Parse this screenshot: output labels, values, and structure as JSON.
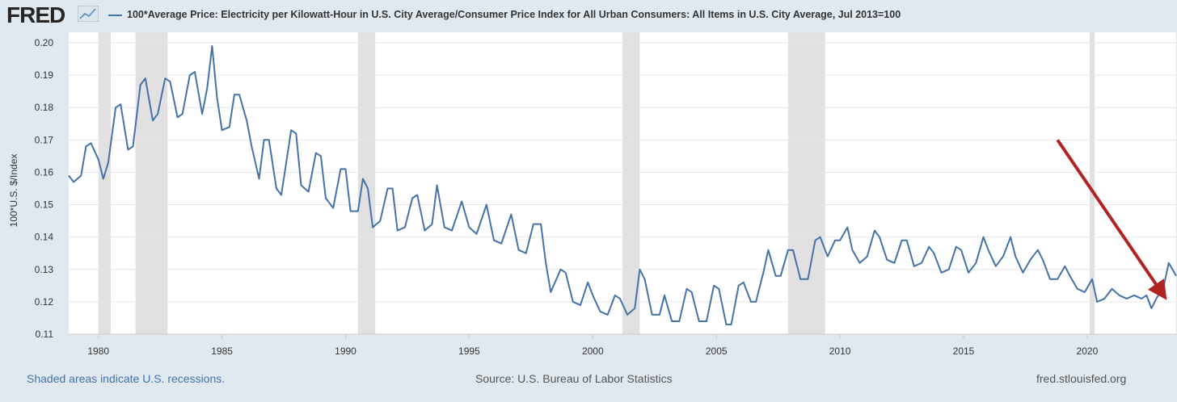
{
  "header": {
    "logo_text": "FRED",
    "logo_icon": "chart-line-icon",
    "legend_label": "100*Average Price: Electricity per Kilowatt-Hour in U.S. City Average/Consumer Price Index for All Urban Consumers: All Items in U.S. City Average, Jul 2013=100"
  },
  "footer": {
    "note": "Shaded areas indicate U.S. recessions.",
    "source": "Source: U.S. Bureau of Labor Statistics",
    "site": "fred.stlouisfed.org"
  },
  "colors": {
    "background": "#e1e9f0",
    "plot_background": "#ffffff",
    "series_line": "#4572a7",
    "recession_band": "#e1e1e1",
    "annotation_arrow": "#b22222"
  },
  "chart_data": {
    "type": "line",
    "title": "",
    "xlabel": "",
    "ylabel": "100*U.S. $/Index",
    "xlim": [
      1978.8,
      2023.6
    ],
    "ylim": [
      0.11,
      0.2
    ],
    "x_ticks": [
      1980,
      1985,
      1990,
      1995,
      2000,
      2005,
      2010,
      2015,
      2020
    ],
    "y_ticks": [
      0.11,
      0.12,
      0.13,
      0.14,
      0.15,
      0.16,
      0.17,
      0.18,
      0.19,
      0.2
    ],
    "y_tick_labels": [
      "0.11",
      "0.12",
      "0.13",
      "0.14",
      "0.15",
      "0.16",
      "0.17",
      "0.18",
      "0.19",
      "0.20"
    ],
    "grid": "horizontal",
    "legend": "top-left",
    "recessions": [
      [
        1980.0,
        1980.5
      ],
      [
        1981.5,
        1982.8
      ],
      [
        1990.5,
        1991.2
      ],
      [
        2001.2,
        2001.9
      ],
      [
        2007.9,
        2009.4
      ],
      [
        2020.1,
        2020.3
      ]
    ],
    "series": [
      {
        "name": "100*Average Price: Electricity per Kilowatt-Hour in U.S. City Average/Consumer Price Index for All Urban Consumers: All Items in U.S. City Average, Jul 2013=100",
        "points": [
          [
            1978.8,
            0.159
          ],
          [
            1979.0,
            0.157
          ],
          [
            1979.3,
            0.159
          ],
          [
            1979.5,
            0.168
          ],
          [
            1979.7,
            0.169
          ],
          [
            1980.0,
            0.164
          ],
          [
            1980.2,
            0.158
          ],
          [
            1980.4,
            0.163
          ],
          [
            1980.7,
            0.18
          ],
          [
            1980.9,
            0.181
          ],
          [
            1981.2,
            0.167
          ],
          [
            1981.4,
            0.168
          ],
          [
            1981.7,
            0.187
          ],
          [
            1981.9,
            0.189
          ],
          [
            1982.2,
            0.176
          ],
          [
            1982.4,
            0.178
          ],
          [
            1982.7,
            0.189
          ],
          [
            1982.9,
            0.188
          ],
          [
            1983.2,
            0.177
          ],
          [
            1983.4,
            0.178
          ],
          [
            1983.7,
            0.19
          ],
          [
            1983.9,
            0.191
          ],
          [
            1984.2,
            0.178
          ],
          [
            1984.4,
            0.186
          ],
          [
            1984.6,
            0.199
          ],
          [
            1984.8,
            0.183
          ],
          [
            1985.0,
            0.173
          ],
          [
            1985.3,
            0.174
          ],
          [
            1985.5,
            0.184
          ],
          [
            1985.7,
            0.184
          ],
          [
            1986.0,
            0.176
          ],
          [
            1986.2,
            0.168
          ],
          [
            1986.5,
            0.158
          ],
          [
            1986.7,
            0.17
          ],
          [
            1986.9,
            0.17
          ],
          [
            1987.2,
            0.155
          ],
          [
            1987.4,
            0.153
          ],
          [
            1987.8,
            0.173
          ],
          [
            1988.0,
            0.172
          ],
          [
            1988.2,
            0.156
          ],
          [
            1988.5,
            0.154
          ],
          [
            1988.8,
            0.166
          ],
          [
            1989.0,
            0.165
          ],
          [
            1989.2,
            0.152
          ],
          [
            1989.5,
            0.149
          ],
          [
            1989.8,
            0.161
          ],
          [
            1990.0,
            0.161
          ],
          [
            1990.2,
            0.148
          ],
          [
            1990.5,
            0.148
          ],
          [
            1990.7,
            0.158
          ],
          [
            1990.9,
            0.155
          ],
          [
            1991.1,
            0.143
          ],
          [
            1991.4,
            0.145
          ],
          [
            1991.7,
            0.155
          ],
          [
            1991.9,
            0.155
          ],
          [
            1992.1,
            0.142
          ],
          [
            1992.4,
            0.143
          ],
          [
            1992.7,
            0.152
          ],
          [
            1992.9,
            0.153
          ],
          [
            1993.2,
            0.142
          ],
          [
            1993.5,
            0.144
          ],
          [
            1993.7,
            0.156
          ],
          [
            1994.0,
            0.143
          ],
          [
            1994.3,
            0.142
          ],
          [
            1994.7,
            0.151
          ],
          [
            1995.0,
            0.143
          ],
          [
            1995.3,
            0.141
          ],
          [
            1995.7,
            0.15
          ],
          [
            1996.0,
            0.139
          ],
          [
            1996.3,
            0.138
          ],
          [
            1996.7,
            0.147
          ],
          [
            1997.0,
            0.136
          ],
          [
            1997.3,
            0.135
          ],
          [
            1997.6,
            0.144
          ],
          [
            1997.9,
            0.144
          ],
          [
            1998.1,
            0.132
          ],
          [
            1998.3,
            0.123
          ],
          [
            1998.7,
            0.13
          ],
          [
            1998.9,
            0.129
          ],
          [
            1999.2,
            0.12
          ],
          [
            1999.5,
            0.119
          ],
          [
            1999.8,
            0.126
          ],
          [
            2000.0,
            0.122
          ],
          [
            2000.3,
            0.117
          ],
          [
            2000.6,
            0.116
          ],
          [
            2000.9,
            0.122
          ],
          [
            2001.1,
            0.121
          ],
          [
            2001.4,
            0.116
          ],
          [
            2001.7,
            0.118
          ],
          [
            2001.9,
            0.13
          ],
          [
            2002.1,
            0.127
          ],
          [
            2002.4,
            0.116
          ],
          [
            2002.7,
            0.116
          ],
          [
            2002.9,
            0.122
          ],
          [
            2003.2,
            0.114
          ],
          [
            2003.5,
            0.114
          ],
          [
            2003.8,
            0.124
          ],
          [
            2004.0,
            0.123
          ],
          [
            2004.3,
            0.114
          ],
          [
            2004.6,
            0.114
          ],
          [
            2004.9,
            0.125
          ],
          [
            2005.1,
            0.124
          ],
          [
            2005.4,
            0.113
          ],
          [
            2005.6,
            0.113
          ],
          [
            2005.9,
            0.125
          ],
          [
            2006.1,
            0.126
          ],
          [
            2006.4,
            0.12
          ],
          [
            2006.6,
            0.12
          ],
          [
            2006.9,
            0.129
          ],
          [
            2007.1,
            0.136
          ],
          [
            2007.4,
            0.128
          ],
          [
            2007.6,
            0.128
          ],
          [
            2007.9,
            0.136
          ],
          [
            2008.1,
            0.136
          ],
          [
            2008.4,
            0.127
          ],
          [
            2008.7,
            0.127
          ],
          [
            2009.0,
            0.139
          ],
          [
            2009.2,
            0.14
          ],
          [
            2009.5,
            0.134
          ],
          [
            2009.8,
            0.139
          ],
          [
            2010.0,
            0.139
          ],
          [
            2010.3,
            0.143
          ],
          [
            2010.5,
            0.136
          ],
          [
            2010.8,
            0.132
          ],
          [
            2011.1,
            0.134
          ],
          [
            2011.4,
            0.142
          ],
          [
            2011.6,
            0.14
          ],
          [
            2011.9,
            0.133
          ],
          [
            2012.2,
            0.132
          ],
          [
            2012.5,
            0.139
          ],
          [
            2012.7,
            0.139
          ],
          [
            2013.0,
            0.131
          ],
          [
            2013.3,
            0.132
          ],
          [
            2013.6,
            0.137
          ],
          [
            2013.8,
            0.135
          ],
          [
            2014.1,
            0.129
          ],
          [
            2014.4,
            0.13
          ],
          [
            2014.7,
            0.137
          ],
          [
            2014.9,
            0.136
          ],
          [
            2015.2,
            0.129
          ],
          [
            2015.5,
            0.132
          ],
          [
            2015.8,
            0.14
          ],
          [
            2016.0,
            0.136
          ],
          [
            2016.3,
            0.131
          ],
          [
            2016.6,
            0.134
          ],
          [
            2016.9,
            0.14
          ],
          [
            2017.1,
            0.134
          ],
          [
            2017.4,
            0.129
          ],
          [
            2017.7,
            0.133
          ],
          [
            2018.0,
            0.136
          ],
          [
            2018.2,
            0.133
          ],
          [
            2018.5,
            0.127
          ],
          [
            2018.8,
            0.127
          ],
          [
            2019.1,
            0.131
          ],
          [
            2019.3,
            0.128
          ],
          [
            2019.6,
            0.124
          ],
          [
            2019.9,
            0.123
          ],
          [
            2020.2,
            0.127
          ],
          [
            2020.4,
            0.12
          ],
          [
            2020.7,
            0.121
          ],
          [
            2021.0,
            0.124
          ],
          [
            2021.3,
            0.122
          ],
          [
            2021.6,
            0.121
          ],
          [
            2021.9,
            0.122
          ],
          [
            2022.2,
            0.121
          ],
          [
            2022.4,
            0.122
          ],
          [
            2022.6,
            0.118
          ],
          [
            2022.8,
            0.121
          ],
          [
            2023.1,
            0.125
          ],
          [
            2023.3,
            0.132
          ],
          [
            2023.6,
            0.128
          ]
        ]
      }
    ],
    "annotations": [
      {
        "type": "arrow",
        "from": [
          2018.8,
          0.17
        ],
        "to": [
          2023.0,
          0.123
        ]
      }
    ]
  }
}
